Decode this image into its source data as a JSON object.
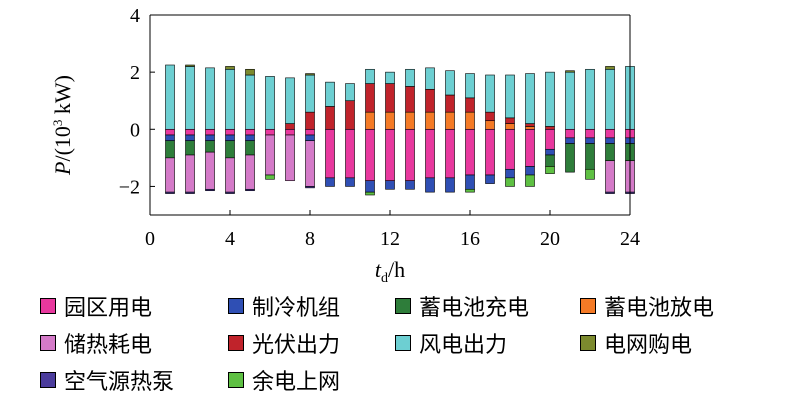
{
  "chart_data": {
    "type": "bar",
    "stacked": true,
    "x_axis": {
      "label_main": "t",
      "label_sub": "d",
      "label_unit": "/h",
      "range": [
        0,
        24
      ],
      "ticks": [
        0,
        4,
        8,
        12,
        16,
        20,
        24
      ],
      "tick_labels": [
        "0",
        "4",
        "8",
        "12",
        "16",
        "20",
        "24"
      ]
    },
    "y_axis": {
      "label_main": "P",
      "label_unit_prefix": "/(10",
      "label_unit_sup": "3",
      "label_unit_suffix": " kW)",
      "range": [
        -3,
        4
      ],
      "ticks": [
        -2,
        0,
        2,
        4
      ],
      "tick_labels": [
        "−2",
        "0",
        "2",
        "4"
      ]
    },
    "legend_position": "bottom",
    "grid": false,
    "x": [
      1,
      2,
      3,
      4,
      5,
      6,
      7,
      8,
      9,
      10,
      11,
      12,
      13,
      14,
      15,
      16,
      17,
      18,
      19,
      20,
      21,
      22,
      23,
      24
    ],
    "series": [
      {
        "name": "园区用电",
        "color": "#e8389e",
        "values": [
          -0.2,
          -0.2,
          -0.2,
          -0.2,
          -0.2,
          -0.2,
          -0.2,
          -0.2,
          -1.7,
          -1.7,
          -1.8,
          -1.8,
          -1.8,
          -1.7,
          -1.7,
          -1.6,
          -1.6,
          -1.4,
          -1.3,
          -0.7,
          -0.3,
          -0.3,
          -0.3,
          -0.3
        ]
      },
      {
        "name": "制冷机组",
        "color": "#2f4fb4",
        "values": [
          -0.2,
          -0.2,
          -0.2,
          -0.2,
          -0.2,
          0,
          0,
          -0.2,
          -0.3,
          -0.3,
          -0.4,
          -0.3,
          -0.3,
          -0.5,
          -0.5,
          -0.5,
          -0.3,
          -0.3,
          -0.3,
          -0.2,
          -0.2,
          -0.2,
          -0.2,
          -0.2
        ]
      },
      {
        "name": "蓄电池充电",
        "color": "#2e7d3a",
        "values": [
          -0.6,
          -0.5,
          -0.4,
          -0.6,
          -0.5,
          0,
          0,
          0,
          0,
          0,
          0,
          0,
          0,
          0,
          0,
          0,
          0,
          0,
          0,
          -0.4,
          -1.0,
          -0.9,
          -0.6,
          -0.6
        ]
      },
      {
        "name": "储热耗电",
        "color": "#d47ac8",
        "values": [
          -1.2,
          -1.3,
          -1.3,
          -1.2,
          -1.2,
          -1.4,
          -1.6,
          -1.6,
          0,
          0,
          0,
          0,
          0,
          0,
          0,
          0,
          0,
          0,
          0,
          0,
          0,
          0,
          -1.1,
          -1.1
        ]
      },
      {
        "name": "空气源热泵",
        "color": "#4b3c9c",
        "values": [
          -0.05,
          -0.05,
          -0.05,
          -0.05,
          -0.05,
          0,
          0,
          -0.05,
          0,
          0,
          0,
          0,
          0,
          0,
          0,
          0,
          0,
          0,
          0,
          0,
          0,
          0,
          -0.05,
          -0.05
        ]
      },
      {
        "name": "余电上网",
        "color": "#5ec043",
        "values": [
          0,
          0,
          0,
          0,
          0,
          -0.15,
          0,
          0,
          0,
          0,
          -0.1,
          0,
          0,
          0,
          0,
          -0.1,
          0,
          -0.3,
          -0.4,
          -0.25,
          0,
          -0.35,
          0,
          0
        ]
      },
      {
        "name": "蓄电池放电",
        "color": "#f47a26",
        "values": [
          0,
          0,
          0,
          0,
          0,
          0,
          0,
          0,
          0,
          0,
          0.6,
          0.6,
          0.6,
          0.6,
          0.6,
          0.6,
          0.3,
          0.2,
          0.1,
          0,
          0,
          0,
          0,
          0
        ]
      },
      {
        "name": "光伏出力",
        "color": "#c0232b",
        "values": [
          0,
          0,
          0,
          0,
          0,
          0,
          0.2,
          0.6,
          0.8,
          1.0,
          1.0,
          1.0,
          0.9,
          0.8,
          0.6,
          0.5,
          0.3,
          0.2,
          0.1,
          0.1,
          0,
          0,
          0,
          0
        ]
      },
      {
        "name": "风电出力",
        "color": "#6dcfd2",
        "values": [
          2.25,
          2.2,
          2.15,
          2.1,
          1.9,
          1.85,
          1.6,
          1.3,
          0.85,
          0.6,
          0.5,
          0.4,
          0.6,
          0.75,
          0.85,
          0.85,
          1.3,
          1.5,
          1.75,
          1.9,
          2.0,
          2.1,
          2.1,
          2.2
        ]
      },
      {
        "name": "电网购电",
        "color": "#7c8a2e",
        "values": [
          0,
          0.05,
          0,
          0.1,
          0.2,
          0,
          0,
          0.05,
          0,
          0,
          0,
          0,
          0,
          0,
          0,
          0,
          0,
          0,
          0,
          0,
          0.05,
          0,
          0.1,
          0
        ]
      }
    ]
  },
  "legend_order": [
    [
      "园区用电",
      "制冷机组",
      "蓄电池充电",
      "蓄电池放电"
    ],
    [
      "储热耗电",
      "光伏出力",
      "风电出力",
      "电网购电"
    ],
    [
      "空气源热泵",
      "余电上网"
    ]
  ]
}
